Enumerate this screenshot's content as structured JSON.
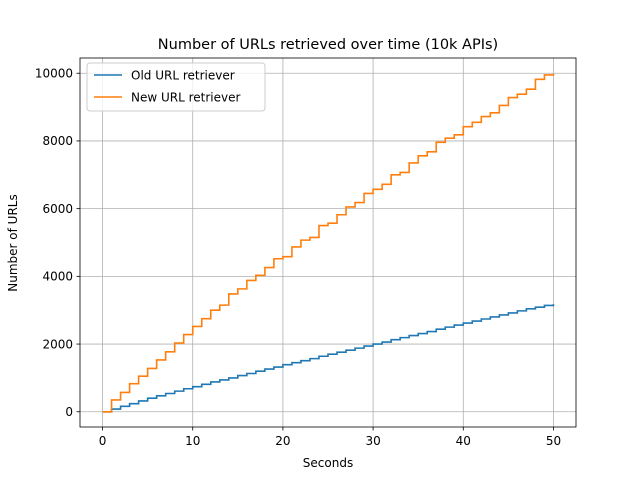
{
  "chart_data": {
    "type": "line",
    "title": "Number of URLs retrieved over time (10k APIs)",
    "xlabel": "Seconds",
    "ylabel": "Number of URLs",
    "xlim": [
      -2.5,
      52.5
    ],
    "ylim": [
      -450,
      10450
    ],
    "xticks": [
      0,
      10,
      20,
      30,
      40,
      50
    ],
    "yticks": [
      0,
      2000,
      4000,
      6000,
      8000,
      10000
    ],
    "grid": true,
    "legend_position": "top-left",
    "step": "post",
    "x": [
      0,
      1,
      2,
      3,
      4,
      5,
      6,
      7,
      8,
      9,
      10,
      11,
      12,
      13,
      14,
      15,
      16,
      17,
      18,
      19,
      20,
      21,
      22,
      23,
      24,
      25,
      26,
      27,
      28,
      29,
      30,
      31,
      32,
      33,
      34,
      35,
      36,
      37,
      38,
      39,
      40,
      41,
      42,
      43,
      44,
      45,
      46,
      47,
      48,
      49,
      50
    ],
    "series": [
      {
        "name": "Old URL retriever",
        "color": "#1f77b4",
        "values": [
          0,
          80,
          160,
          240,
          320,
          400,
          470,
          540,
          610,
          680,
          740,
          810,
          880,
          940,
          1000,
          1070,
          1130,
          1200,
          1260,
          1320,
          1390,
          1450,
          1510,
          1570,
          1640,
          1700,
          1760,
          1820,
          1880,
          1940,
          2000,
          2060,
          2130,
          2190,
          2250,
          2310,
          2370,
          2440,
          2500,
          2560,
          2620,
          2680,
          2740,
          2800,
          2860,
          2920,
          2980,
          3040,
          3090,
          3140,
          3180
        ]
      },
      {
        "name": "New URL retriever",
        "color": "#ff7f0e",
        "values": [
          0,
          350,
          570,
          830,
          1050,
          1280,
          1530,
          1770,
          2030,
          2280,
          2520,
          2750,
          3000,
          3150,
          3480,
          3630,
          3880,
          4030,
          4260,
          4520,
          4580,
          4870,
          5070,
          5150,
          5500,
          5570,
          5820,
          6050,
          6180,
          6450,
          6570,
          6720,
          7000,
          7070,
          7350,
          7560,
          7680,
          7960,
          8080,
          8180,
          8420,
          8550,
          8720,
          8830,
          9050,
          9280,
          9380,
          9530,
          9820,
          9950,
          9980
        ]
      }
    ]
  }
}
